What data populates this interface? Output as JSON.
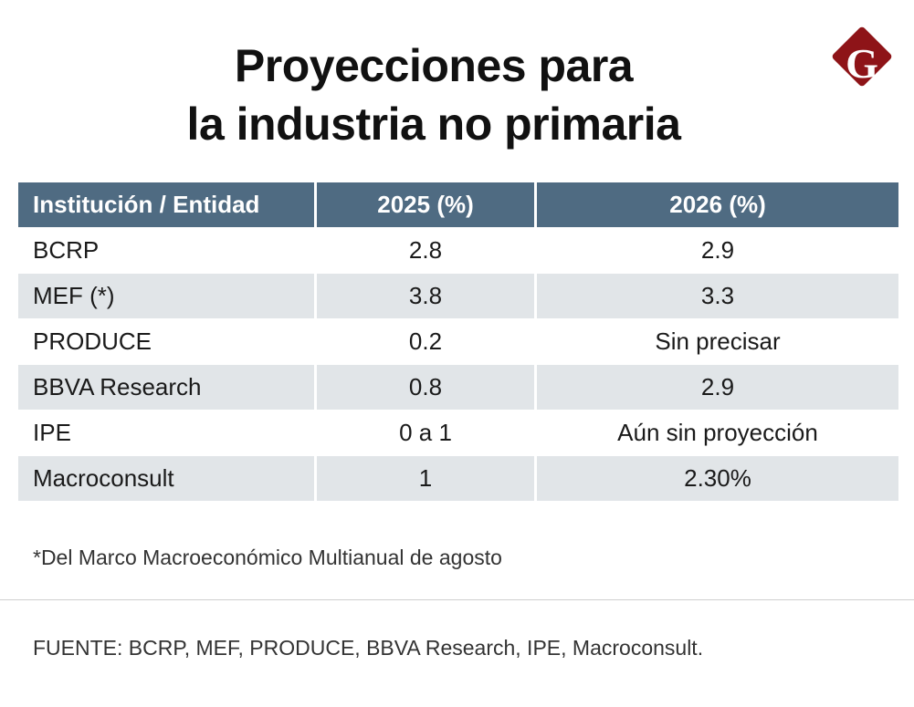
{
  "title": {
    "line1": "Proyecciones para",
    "line2": "la industria no primaria"
  },
  "logo": {
    "letter": "G",
    "color": "#8e1418"
  },
  "table": {
    "headers": [
      "Institución / Entidad",
      "2025 (%)",
      "2026 (%)"
    ],
    "header_color": "#4f6b82",
    "rows": [
      [
        "BCRP",
        "2.8",
        "2.9"
      ],
      [
        "MEF (*)",
        "3.8",
        "3.3"
      ],
      [
        "PRODUCE",
        "0.2",
        "Sin precisar"
      ],
      [
        "BBVA Research",
        "0.8",
        "2.9"
      ],
      [
        "IPE",
        "0 a 1",
        "Aún sin proyección"
      ],
      [
        "Macroconsult",
        "1",
        "2.30%"
      ]
    ]
  },
  "footnote": "*Del Marco Macroeconómico Multianual de agosto",
  "source": "FUENTE: BCRP, MEF, PRODUCE, BBVA Research, IPE, Macroconsult."
}
